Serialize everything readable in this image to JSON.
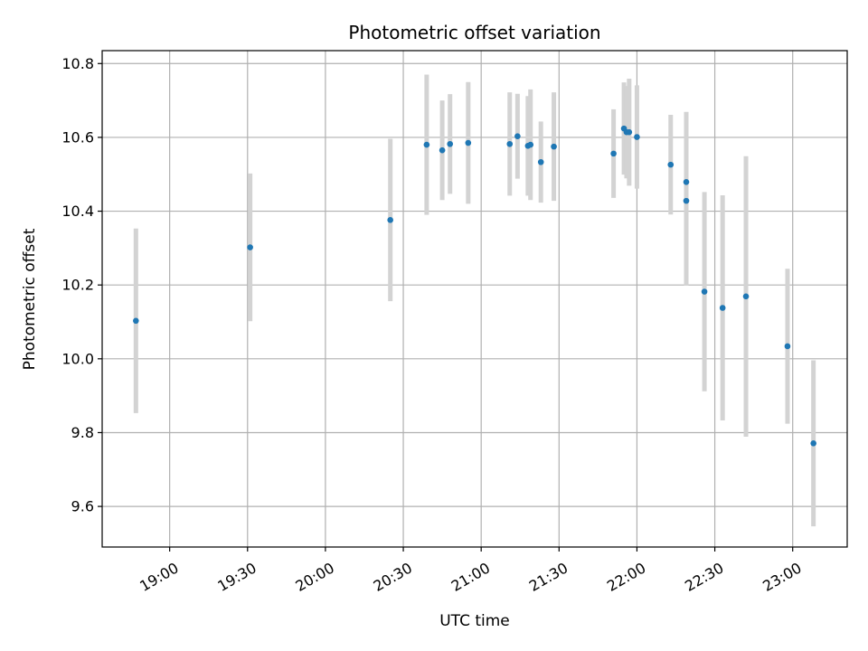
{
  "chart_data": {
    "type": "scatter",
    "title": "Photometric offset variation",
    "xlabel": "UTC time",
    "ylabel": "Photometric offset",
    "x_format": "HH:MM",
    "xlim": [
      "18:34",
      "23:21"
    ],
    "ylim": [
      9.49,
      10.835
    ],
    "x_ticks": [
      "19:00",
      "19:30",
      "20:00",
      "20:30",
      "21:00",
      "21:30",
      "22:00",
      "22:30",
      "23:00"
    ],
    "y_ticks": [
      9.6,
      9.8,
      10.0,
      10.2,
      10.4,
      10.6,
      10.8
    ],
    "y_tick_labels": [
      "9.6",
      "9.8",
      "10.0",
      "10.2",
      "10.4",
      "10.6",
      "10.8"
    ],
    "grid": true,
    "marker_color": "#1f77b4",
    "errorbar_color": "#d3d3d3",
    "points": [
      {
        "x": "18:47",
        "y": 10.103,
        "err": 0.25
      },
      {
        "x": "19:31",
        "y": 10.302,
        "err": 0.2
      },
      {
        "x": "20:25",
        "y": 10.376,
        "err": 0.22
      },
      {
        "x": "20:39",
        "y": 10.58,
        "err": 0.19
      },
      {
        "x": "20:45",
        "y": 10.565,
        "err": 0.135
      },
      {
        "x": "20:48",
        "y": 10.582,
        "err": 0.135
      },
      {
        "x": "20:55",
        "y": 10.585,
        "err": 0.165
      },
      {
        "x": "21:11",
        "y": 10.582,
        "err": 0.14
      },
      {
        "x": "21:14",
        "y": 10.603,
        "err": 0.115
      },
      {
        "x": "21:18",
        "y": 10.577,
        "err": 0.135
      },
      {
        "x": "21:19",
        "y": 10.58,
        "err": 0.15
      },
      {
        "x": "21:23",
        "y": 10.533,
        "err": 0.11
      },
      {
        "x": "21:28",
        "y": 10.575,
        "err": 0.147
      },
      {
        "x": "21:51",
        "y": 10.556,
        "err": 0.12
      },
      {
        "x": "21:55",
        "y": 10.624,
        "err": 0.125
      },
      {
        "x": "21:56",
        "y": 10.614,
        "err": 0.125
      },
      {
        "x": "21:57",
        "y": 10.614,
        "err": 0.145
      },
      {
        "x": "22:00",
        "y": 10.601,
        "err": 0.14
      },
      {
        "x": "22:13",
        "y": 10.526,
        "err": 0.135
      },
      {
        "x": "22:19",
        "y": 10.479,
        "err": 0.19
      },
      {
        "x": "22:19",
        "y": 10.428,
        "err": 0.23
      },
      {
        "x": "22:26",
        "y": 10.182,
        "err": 0.27
      },
      {
        "x": "22:33",
        "y": 10.138,
        "err": 0.305
      },
      {
        "x": "22:42",
        "y": 10.169,
        "err": 0.38
      },
      {
        "x": "22:58",
        "y": 10.034,
        "err": 0.21
      },
      {
        "x": "23:08",
        "y": 9.771,
        "err": 0.225
      }
    ]
  }
}
